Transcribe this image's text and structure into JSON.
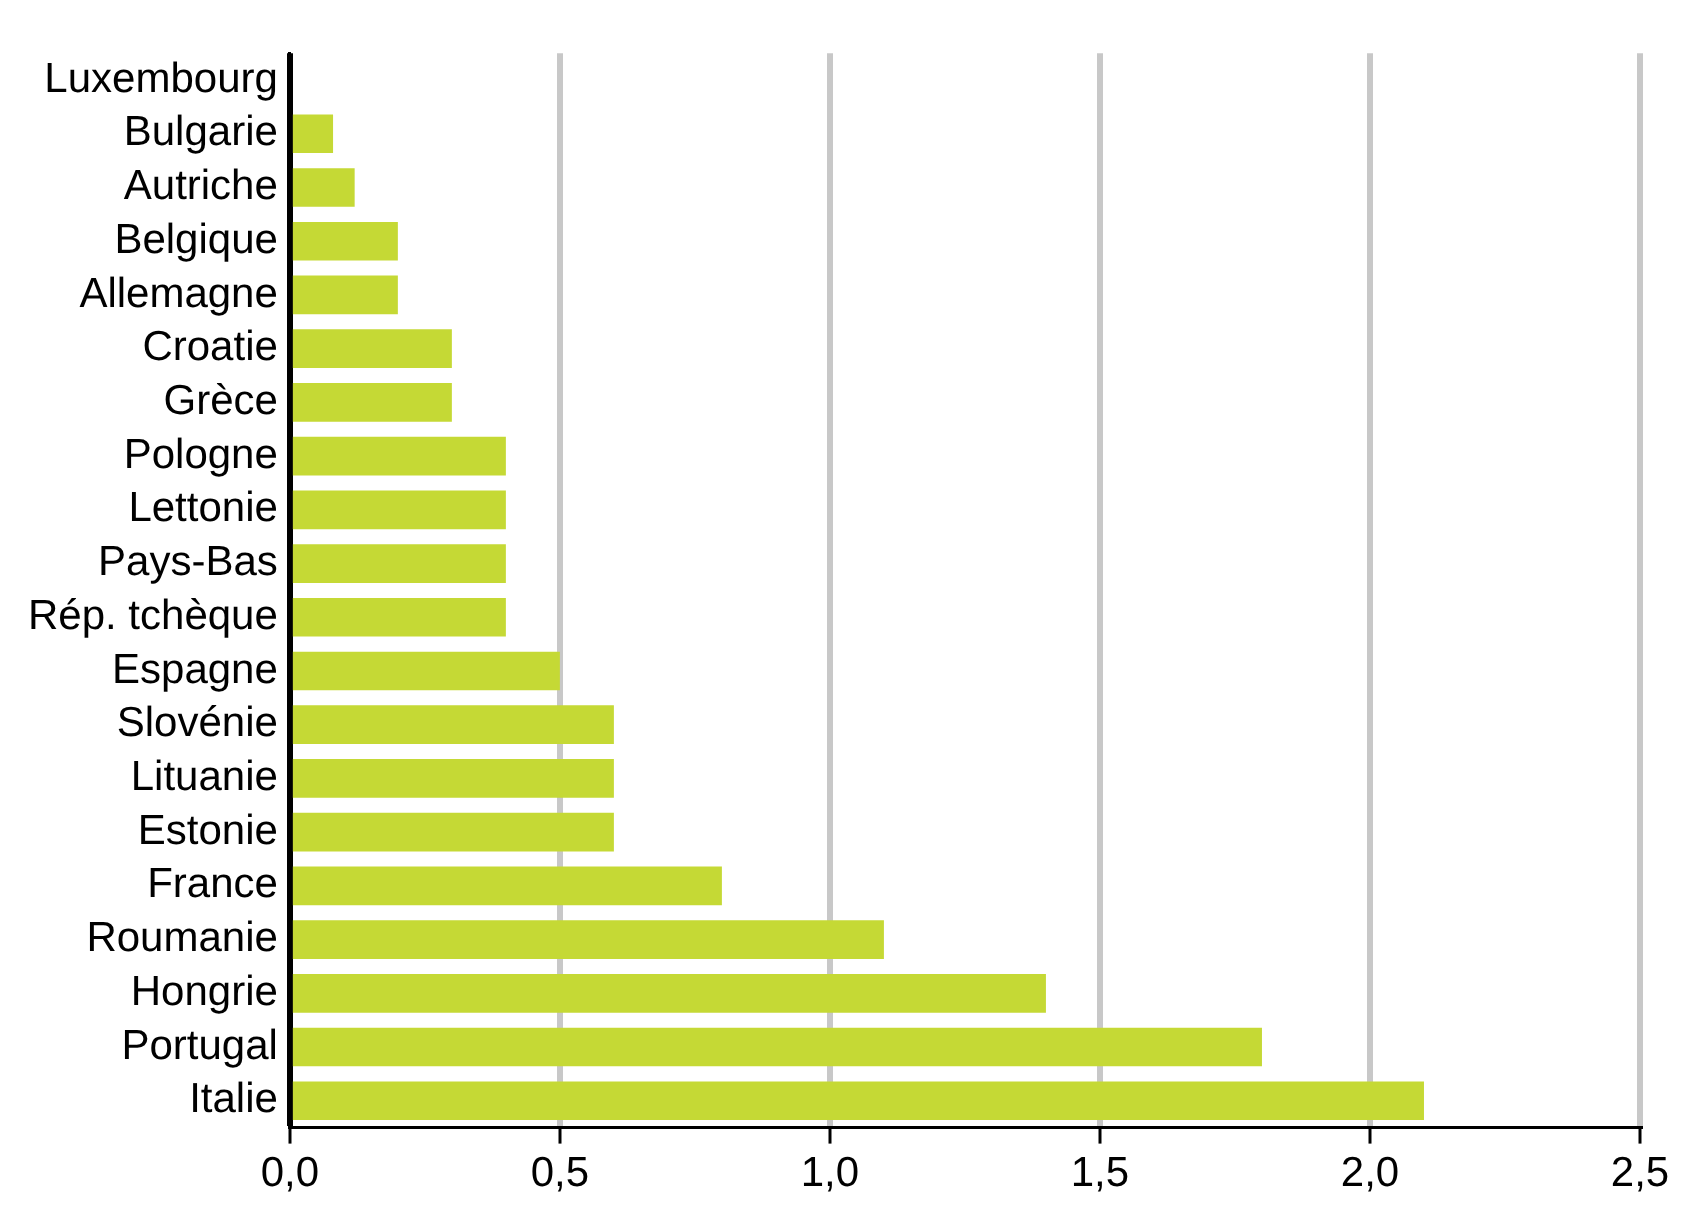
{
  "chart_data": {
    "type": "bar",
    "orientation": "horizontal",
    "categories": [
      "Luxembourg",
      "Bulgarie",
      "Autriche",
      "Belgique",
      "Allemagne",
      "Croatie",
      "Grèce",
      "Pologne",
      "Lettonie",
      "Pays-Bas",
      "Rép. tchèque",
      "Espagne",
      "Slovénie",
      "Lituanie",
      "Estonie",
      "France",
      "Roumanie",
      "Hongrie",
      "Portugal",
      "Italie"
    ],
    "values": [
      0,
      0.08,
      0.12,
      0.2,
      0.2,
      0.3,
      0.3,
      0.4,
      0.4,
      0.4,
      0.4,
      0.5,
      0.6,
      0.6,
      0.6,
      0.8,
      1.1,
      1.4,
      1.8,
      2.1
    ],
    "color": "#c5d935",
    "xlim": [
      0,
      2.5
    ],
    "xticks": [
      {
        "value": 0,
        "label": "0,0"
      },
      {
        "value": 0.5,
        "label": "0,5"
      },
      {
        "value": 1,
        "label": "1,0"
      },
      {
        "value": 1.5,
        "label": "1,5"
      },
      {
        "value": 2,
        "label": "2,0"
      },
      {
        "value": 2.5,
        "label": "2,5"
      }
    ],
    "grid": "x",
    "legend": false
  }
}
